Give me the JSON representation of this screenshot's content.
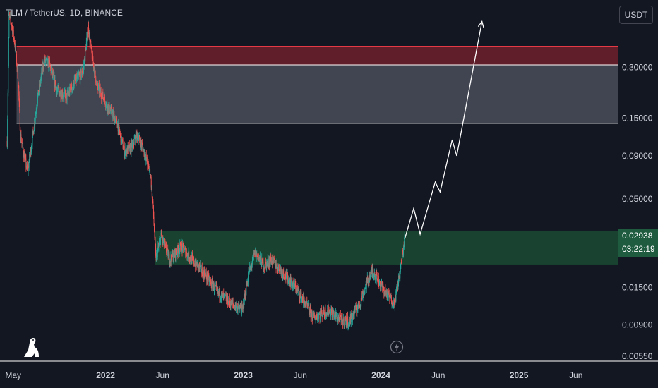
{
  "header": {
    "symbol": "TLM / TetherUS, 1D, BINANCE",
    "currency": "USDT"
  },
  "colors": {
    "background": "#131722",
    "up": "#26a69a",
    "down": "#ef5350",
    "axis_text": "#d1d4dc",
    "resistance_zone": "#4a4d59",
    "supply_zone": "#6e1f2b",
    "demand_zone": "#1b4a32",
    "current_price": "#1e5b3f"
  },
  "icons": [
    "tradingview-dino-icon",
    "replay-bolt-icon"
  ],
  "chart_data": {
    "type": "candlestick",
    "y_scale": "log",
    "ylim": [
      0.0055,
      0.75
    ],
    "y_ticks": [
      {
        "value": 0.3,
        "label": "0.30000"
      },
      {
        "value": 0.15,
        "label": "0.15000"
      },
      {
        "value": 0.09,
        "label": "0.09000"
      },
      {
        "value": 0.05,
        "label": "0.05000"
      },
      {
        "value": 0.015,
        "label": "0.01500"
      },
      {
        "value": 0.009,
        "label": "0.00900"
      },
      {
        "value": 0.0055,
        "label": "0.00550"
      }
    ],
    "x_ticks": [
      {
        "date": "2021-05-01",
        "label": "May",
        "bold": false
      },
      {
        "date": "2022-01-01",
        "label": "2022",
        "bold": true
      },
      {
        "date": "2022-06-01",
        "label": "Jun",
        "bold": false
      },
      {
        "date": "2023-01-01",
        "label": "2023",
        "bold": true
      },
      {
        "date": "2023-06-01",
        "label": "Jun",
        "bold": false
      },
      {
        "date": "2024-01-01",
        "label": "2024",
        "bold": true
      },
      {
        "date": "2024-06-01",
        "label": "Jun",
        "bold": false
      },
      {
        "date": "2025-01-01",
        "label": "2025",
        "bold": true
      },
      {
        "date": "2025-06-01",
        "label": "Jun",
        "bold": false
      }
    ],
    "x_range": [
      "2021-03-27",
      "2025-09-20"
    ],
    "price_path": [
      [
        "2021-04-15",
        0.11
      ],
      [
        "2021-04-20",
        0.6
      ],
      [
        "2021-04-26",
        0.55
      ],
      [
        "2021-05-05",
        0.42
      ],
      [
        "2021-05-14",
        0.26
      ],
      [
        "2021-05-20",
        0.12
      ],
      [
        "2021-05-30",
        0.09
      ],
      [
        "2021-06-08",
        0.072
      ],
      [
        "2021-06-20",
        0.11
      ],
      [
        "2021-07-05",
        0.2
      ],
      [
        "2021-07-22",
        0.33
      ],
      [
        "2021-08-05",
        0.31
      ],
      [
        "2021-08-25",
        0.22
      ],
      [
        "2021-09-20",
        0.2
      ],
      [
        "2021-10-12",
        0.25
      ],
      [
        "2021-11-02",
        0.28
      ],
      [
        "2021-11-16",
        0.52
      ],
      [
        "2021-11-25",
        0.36
      ],
      [
        "2021-12-10",
        0.23
      ],
      [
        "2022-01-05",
        0.18
      ],
      [
        "2022-02-01",
        0.14
      ],
      [
        "2022-02-20",
        0.095
      ],
      [
        "2022-03-10",
        0.1
      ],
      [
        "2022-03-25",
        0.12
      ],
      [
        "2022-04-10",
        0.1
      ],
      [
        "2022-04-30",
        0.07
      ],
      [
        "2022-05-06",
        0.048
      ],
      [
        "2022-05-14",
        0.022
      ],
      [
        "2022-05-28",
        0.03
      ],
      [
        "2022-06-10",
        0.025
      ],
      [
        "2022-06-20",
        0.022
      ],
      [
        "2022-07-20",
        0.026
      ],
      [
        "2022-08-10",
        0.023
      ],
      [
        "2022-09-20",
        0.018
      ],
      [
        "2022-10-25",
        0.014
      ],
      [
        "2022-12-01",
        0.012
      ],
      [
        "2022-12-30",
        0.011
      ],
      [
        "2023-01-15",
        0.018
      ],
      [
        "2023-02-01",
        0.024
      ],
      [
        "2023-02-25",
        0.02
      ],
      [
        "2023-03-15",
        0.022
      ],
      [
        "2023-04-20",
        0.018
      ],
      [
        "2023-05-20",
        0.015
      ],
      [
        "2023-06-15",
        0.012
      ],
      [
        "2023-07-05",
        0.01
      ],
      [
        "2023-08-15",
        0.011
      ],
      [
        "2023-09-20",
        0.0095
      ],
      [
        "2023-10-10",
        0.0095
      ],
      [
        "2023-11-05",
        0.012
      ],
      [
        "2023-11-25",
        0.016
      ],
      [
        "2023-12-10",
        0.019
      ],
      [
        "2023-12-22",
        0.017
      ],
      [
        "2024-01-05",
        0.015
      ],
      [
        "2024-01-25",
        0.013
      ],
      [
        "2024-02-05",
        0.012
      ],
      [
        "2024-02-20",
        0.018
      ],
      [
        "2024-03-04",
        0.029
      ]
    ],
    "projection_path": [
      [
        "2024-03-04",
        0.029
      ],
      [
        "2024-03-28",
        0.044
      ],
      [
        "2024-04-14",
        0.031
      ],
      [
        "2024-05-24",
        0.063
      ],
      [
        "2024-06-06",
        0.055
      ],
      [
        "2024-07-08",
        0.112
      ],
      [
        "2024-07-20",
        0.09
      ],
      [
        "2024-09-25",
        0.56
      ]
    ],
    "zones": [
      {
        "type": "supply",
        "from": "2021-05-10",
        "to": "2025-09-20",
        "y_low": 0.31,
        "y_high": 0.4
      },
      {
        "type": "resistance",
        "from": "2021-05-10",
        "to": "2025-09-20",
        "y_low": 0.14,
        "y_high": 0.31
      },
      {
        "type": "demand",
        "from": "2022-05-12",
        "to": "2025-09-20",
        "y_low": 0.0205,
        "y_high": 0.0325
      }
    ],
    "current_price": {
      "value": 0.02938,
      "label": "0.02938",
      "countdown": "03:22:19"
    }
  }
}
